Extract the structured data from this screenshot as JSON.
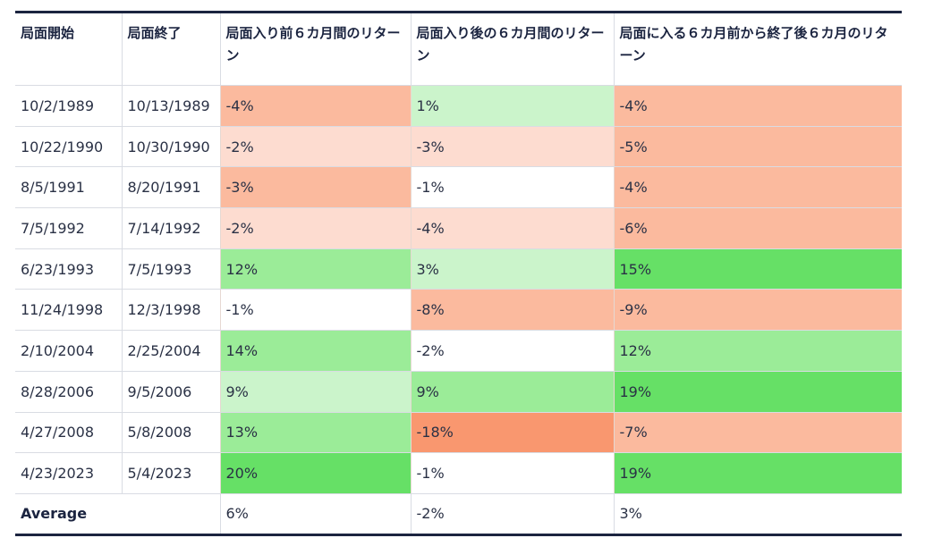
{
  "table": {
    "headers": [
      "局面開始",
      "局面終了",
      "局面入り前６カ月間のリターン",
      "局面入り後の６カ月間のリターン",
      "局面に入る６カ月前から終了後６カ月のリターン"
    ],
    "rows": [
      {
        "start": "10/2/1989",
        "end": "10/13/1989",
        "before": "-4%",
        "after": "1%",
        "total": "-4%"
      },
      {
        "start": "10/22/1990",
        "end": "10/30/1990",
        "before": "-2%",
        "after": "-3%",
        "total": "-5%"
      },
      {
        "start": "8/5/1991",
        "end": "8/20/1991",
        "before": "-3%",
        "after": "-1%",
        "total": "-4%"
      },
      {
        "start": "7/5/1992",
        "end": "7/14/1992",
        "before": "-2%",
        "after": "-4%",
        "total": "-6%"
      },
      {
        "start": "6/23/1993",
        "end": "7/5/1993",
        "before": "12%",
        "after": "3%",
        "total": "15%"
      },
      {
        "start": "11/24/1998",
        "end": "12/3/1998",
        "before": "-1%",
        "after": "-8%",
        "total": "-9%"
      },
      {
        "start": "2/10/2004",
        "end": "2/25/2004",
        "before": "14%",
        "after": "-2%",
        "total": "12%"
      },
      {
        "start": "8/28/2006",
        "end": "9/5/2006",
        "before": "9%",
        "after": "9%",
        "total": "19%"
      },
      {
        "start": "4/27/2008",
        "end": "5/8/2008",
        "before": "13%",
        "after": "-18%",
        "total": "-7%"
      },
      {
        "start": "4/23/2023",
        "end": "5/4/2023",
        "before": "20%",
        "after": "-1%",
        "total": "19%"
      }
    ],
    "cell_colors": [
      [
        "#FBBA9E",
        "#CBF4CB",
        "#FBBA9E"
      ],
      [
        "#FDDCD0",
        "#FDDCD0",
        "#FBBA9E"
      ],
      [
        "#FBBA9E",
        "#FFFFFF",
        "#FBBA9E"
      ],
      [
        "#FDDCD0",
        "#FDDCD0",
        "#FBBA9E"
      ],
      [
        "#9BEC98",
        "#CBF4CB",
        "#66E066"
      ],
      [
        "#FFFFFF",
        "#FBBA9E",
        "#FBBA9E"
      ],
      [
        "#9BEC98",
        "#FFFFFF",
        "#9BEC98"
      ],
      [
        "#CBF4CB",
        "#9BEC98",
        "#66E066"
      ],
      [
        "#9BEC98",
        "#F9976F",
        "#FBBA9E"
      ],
      [
        "#66E066",
        "#FFFFFF",
        "#66E066"
      ]
    ],
    "average": {
      "label": "Average",
      "before": "6%",
      "after": "-2%",
      "total": "3%"
    }
  }
}
